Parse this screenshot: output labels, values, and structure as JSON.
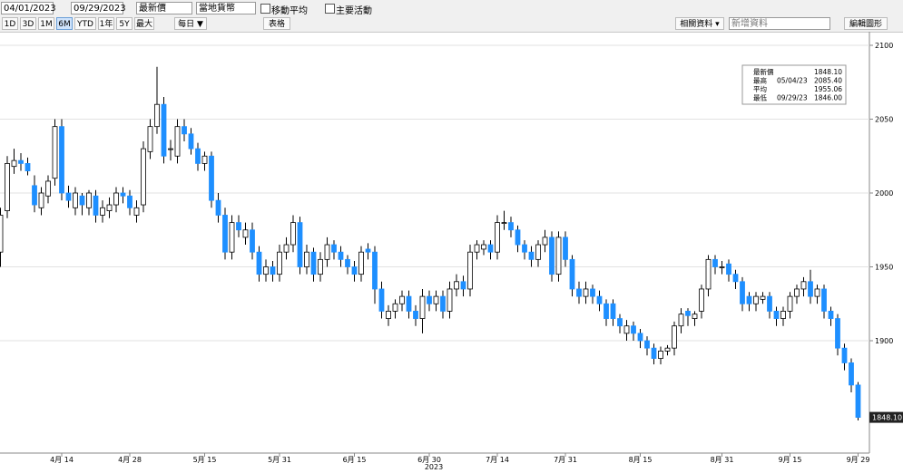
{
  "toolbar": {
    "start_date": "04/01/2023",
    "end_date": "09/29/2023",
    "field": "最新價",
    "currency": "當地貨幣",
    "moving_average": "移動平均",
    "events": "主要活動",
    "periods": [
      "1D",
      "3D",
      "1M",
      "6M",
      "YTD",
      "1年",
      "5Y",
      "最大"
    ],
    "frequency": "每日 ▼",
    "table": "表格",
    "related": "相關資料 ▾",
    "add_data": "新增資料",
    "edit_chart": "編輯圖形"
  },
  "stats_box": [
    {
      "label": "最新價",
      "date": null,
      "value": "1848.10"
    },
    {
      "label": "最高",
      "date": "05/04/23",
      "value": "2085.40"
    },
    {
      "label": "平均",
      "date": null,
      "value": "1955.06"
    },
    {
      "label": "最低",
      "date": "09/29/23",
      "value": "1846.00"
    }
  ],
  "chart_data": {
    "type": "candlestick",
    "xlabel": "2023",
    "up_color": "#ffffff",
    "down_color": "#1e8fff",
    "edge_color": "#000000",
    "grid": true,
    "last_label": "1848.10",
    "ylim": [
      1825,
      2107
    ],
    "yticks": [
      1900,
      1950,
      2000,
      2050,
      2100
    ],
    "categories": [
      null,
      null,
      null,
      null,
      null,
      null,
      null,
      null,
      null,
      "4月 14",
      null,
      null,
      null,
      null,
      null,
      null,
      null,
      null,
      null,
      "4月 28",
      null,
      null,
      null,
      null,
      null,
      null,
      null,
      null,
      null,
      null,
      "5月 15",
      null,
      null,
      null,
      null,
      null,
      null,
      null,
      null,
      null,
      null,
      "5月 31",
      null,
      null,
      null,
      null,
      null,
      null,
      null,
      null,
      null,
      null,
      "6月 15",
      null,
      null,
      null,
      null,
      null,
      null,
      null,
      null,
      null,
      null,
      "6月 30",
      null,
      null,
      null,
      null,
      null,
      null,
      null,
      null,
      null,
      "7月 14",
      null,
      null,
      null,
      null,
      null,
      null,
      null,
      null,
      null,
      "7月 31",
      null,
      null,
      null,
      null,
      null,
      null,
      null,
      null,
      null,
      null,
      "8月 15",
      null,
      null,
      null,
      null,
      null,
      null,
      null,
      null,
      null,
      null,
      null,
      "8月 31",
      null,
      null,
      null,
      null,
      null,
      null,
      null,
      null,
      null,
      "9月 15",
      null,
      null,
      null,
      null,
      null,
      null,
      null,
      null,
      null,
      "9月 29"
    ],
    "open": [
      1960,
      1988,
      2018,
      2022,
      2020,
      2005,
      1990,
      1998,
      2010,
      2045,
      2000,
      1990,
      1998,
      1990,
      1998,
      1985,
      1988,
      1992,
      2000,
      1998,
      1985,
      1992,
      2028,
      2045,
      2060,
      2030,
      2025,
      2045,
      2040,
      2030,
      2020,
      2025,
      1995,
      1985,
      1960,
      1980,
      1970,
      1975,
      1960,
      1945,
      1950,
      1945,
      1960,
      1965,
      1980,
      1950,
      1960,
      1945,
      1955,
      1965,
      1960,
      1955,
      1950,
      1945,
      1962,
      1960,
      1935,
      1915,
      1920,
      1925,
      1930,
      1920,
      1915,
      1930,
      1925,
      1930,
      1920,
      1935,
      1940,
      1935,
      1960,
      1962,
      1965,
      1960,
      1980,
      1980,
      1975,
      1965,
      1960,
      1955,
      1965,
      1970,
      1945,
      1970,
      1955,
      1935,
      1930,
      1935,
      1930,
      1925,
      1925,
      1915,
      1905,
      1910,
      1905,
      1900,
      1895,
      1888,
      1893,
      1895,
      1910,
      1920,
      1915,
      1920,
      1935,
      1955,
      1950,
      1952,
      1945,
      1940,
      1930,
      1925,
      1928,
      1930,
      1920,
      1915,
      1920,
      1930,
      1935,
      1940,
      1930,
      1935,
      1920,
      1915,
      1895,
      1885,
      1870
    ],
    "high": [
      1990,
      2025,
      2030,
      2027,
      2024,
      2012,
      2004,
      2012,
      2050,
      2050,
      2005,
      2004,
      2000,
      2002,
      2002,
      1995,
      1997,
      2004,
      2004,
      2002,
      1995,
      2035,
      2050,
      2085.4,
      2065,
      2036,
      2050,
      2050,
      2044,
      2034,
      2028,
      2028,
      2000,
      1990,
      1985,
      1985,
      1980,
      1980,
      1964,
      1955,
      1954,
      1965,
      1970,
      1985,
      1984,
      1965,
      1963,
      1960,
      1970,
      1968,
      1964,
      1958,
      1954,
      1964,
      1966,
      1964,
      1940,
      1924,
      1928,
      1934,
      1934,
      1924,
      1935,
      1934,
      1934,
      1934,
      1940,
      1945,
      1944,
      1965,
      1968,
      1968,
      1968,
      1985,
      1988,
      1984,
      1978,
      1968,
      1964,
      1968,
      1975,
      1974,
      1974,
      1974,
      1958,
      1940,
      1940,
      1938,
      1934,
      1928,
      1928,
      1918,
      1914,
      1913,
      1908,
      1903,
      1898,
      1896,
      1897,
      1913,
      1922,
      1922,
      1920,
      1938,
      1958,
      1958,
      1954,
      1955,
      1948,
      1943,
      1933,
      1933,
      1933,
      1933,
      1923,
      1923,
      1933,
      1938,
      1943,
      1948,
      1938,
      1938,
      1923,
      1918,
      1898,
      1888,
      1872
    ],
    "low": [
      1950,
      1983,
      2013,
      2015,
      2012,
      1987,
      1985,
      1993,
      2005,
      1995,
      1990,
      1985,
      1985,
      1985,
      1980,
      1980,
      1983,
      1987,
      1993,
      1985,
      1980,
      1987,
      2023,
      2040,
      2020,
      2022,
      2020,
      2035,
      2026,
      2015,
      2015,
      1990,
      1980,
      1955,
      1955,
      1970,
      1965,
      1955,
      1940,
      1940,
      1940,
      1940,
      1955,
      1960,
      1945,
      1945,
      1940,
      1940,
      1950,
      1955,
      1950,
      1945,
      1940,
      1940,
      1955,
      1925,
      1915,
      1910,
      1915,
      1920,
      1915,
      1910,
      1905,
      1920,
      1920,
      1915,
      1915,
      1930,
      1930,
      1930,
      1955,
      1958,
      1955,
      1955,
      1975,
      1970,
      1960,
      1955,
      1950,
      1950,
      1960,
      1940,
      1940,
      1950,
      1930,
      1925,
      1925,
      1925,
      1920,
      1910,
      1910,
      1905,
      1900,
      1900,
      1895,
      1890,
      1884,
      1884,
      1890,
      1890,
      1905,
      1910,
      1910,
      1915,
      1930,
      1945,
      1945,
      1940,
      1935,
      1920,
      1920,
      1920,
      1925,
      1915,
      1910,
      1910,
      1915,
      1925,
      1930,
      1925,
      1925,
      1915,
      1910,
      1890,
      1880,
      1865,
      1846
    ],
    "close": [
      1985,
      2020,
      2022,
      2020,
      2015,
      1992,
      2000,
      2008,
      2045,
      2000,
      1995,
      2000,
      1992,
      2000,
      1985,
      1990,
      1992,
      2000,
      1998,
      1990,
      1990,
      2030,
      2045,
      2060,
      2025,
      2030,
      2045,
      2040,
      2030,
      2020,
      2025,
      1995,
      1985,
      1960,
      1980,
      1975,
      1975,
      1960,
      1945,
      1950,
      1945,
      1960,
      1965,
      1980,
      1950,
      1960,
      1945,
      1955,
      1965,
      1960,
      1955,
      1950,
      1945,
      1960,
      1960,
      1935,
      1920,
      1920,
      1925,
      1930,
      1920,
      1915,
      1930,
      1925,
      1930,
      1920,
      1935,
      1940,
      1935,
      1960,
      1965,
      1965,
      1960,
      1980,
      1980,
      1975,
      1965,
      1960,
      1955,
      1965,
      1970,
      1945,
      1970,
      1955,
      1935,
      1930,
      1935,
      1930,
      1925,
      1915,
      1915,
      1910,
      1910,
      1905,
      1900,
      1895,
      1888,
      1893,
      1895,
      1910,
      1918,
      1917,
      1918,
      1935,
      1955,
      1950,
      1950,
      1945,
      1940,
      1925,
      1925,
      1930,
      1930,
      1920,
      1915,
      1920,
      1930,
      1935,
      1940,
      1930,
      1935,
      1920,
      1915,
      1895,
      1885,
      1870,
      1848.1
    ]
  }
}
